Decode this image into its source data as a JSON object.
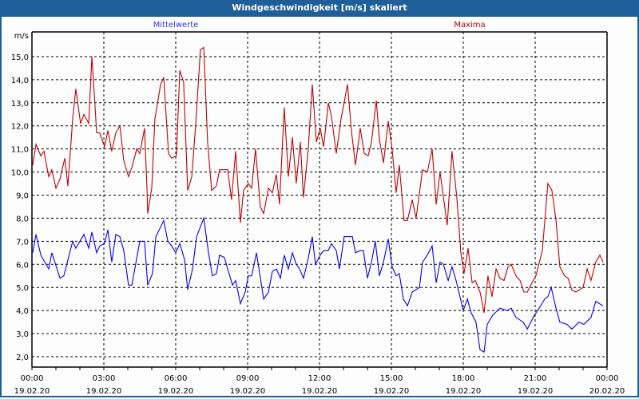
{
  "window": {
    "title": "Windgeschwindigkeit [m/s] skaliert"
  },
  "chart_data": {
    "type": "line",
    "title": "Windgeschwindigkeit [m/s] skaliert",
    "ylabel": "m/s",
    "xlabel": "",
    "ylim": [
      1.55,
      16.07
    ],
    "xlim_hours": [
      0,
      24
    ],
    "grid": true,
    "legend_placement": "top",
    "y_ticks": [
      "2,0",
      "3,0",
      "4,0",
      "5,0",
      "6,0",
      "7,0",
      "8,0",
      "9,0",
      "10,0",
      "11,0",
      "12,0",
      "13,0",
      "14,0",
      "15,0"
    ],
    "x_ticks": [
      {
        "time": "00:00",
        "date": "19.02.20"
      },
      {
        "time": "03:00",
        "date": "19.02.20"
      },
      {
        "time": "06:00",
        "date": "19.02.20"
      },
      {
        "time": "09:00",
        "date": "19.02.20"
      },
      {
        "time": "12:00",
        "date": "19.02.20"
      },
      {
        "time": "15:00",
        "date": "19.02.20"
      },
      {
        "time": "18:00",
        "date": "19.02.20"
      },
      {
        "time": "21:00",
        "date": "19.02.20"
      },
      {
        "time": "00:00",
        "date": "20.02.20"
      }
    ],
    "series": [
      {
        "name": "Mittelwerte",
        "color": "#0000ff",
        "points": [
          [
            0.03,
            6.5
          ],
          [
            0.17,
            7.3
          ],
          [
            0.37,
            6.4
          ],
          [
            0.7,
            5.8
          ],
          [
            0.83,
            6.5
          ],
          [
            1.17,
            5.4
          ],
          [
            1.33,
            5.5
          ],
          [
            1.7,
            7.0
          ],
          [
            1.83,
            6.7
          ],
          [
            2.17,
            7.3
          ],
          [
            2.37,
            6.7
          ],
          [
            2.5,
            7.4
          ],
          [
            2.7,
            6.5
          ],
          [
            2.83,
            6.8
          ],
          [
            3.03,
            6.9
          ],
          [
            3.17,
            7.5
          ],
          [
            3.33,
            6.1
          ],
          [
            3.5,
            7.3
          ],
          [
            3.67,
            7.2
          ],
          [
            3.83,
            6.6
          ],
          [
            4.03,
            5.1
          ],
          [
            4.17,
            5.1
          ],
          [
            4.5,
            7.0
          ],
          [
            4.7,
            7.0
          ],
          [
            4.83,
            5.1
          ],
          [
            5.03,
            5.6
          ],
          [
            5.17,
            7.2
          ],
          [
            5.5,
            7.9
          ],
          [
            5.67,
            7.0
          ],
          [
            5.83,
            6.8
          ],
          [
            6.0,
            6.5
          ],
          [
            6.17,
            6.9
          ],
          [
            6.37,
            6.2
          ],
          [
            6.5,
            4.9
          ],
          [
            6.7,
            5.8
          ],
          [
            6.87,
            7.2
          ],
          [
            7.17,
            8.0
          ],
          [
            7.37,
            6.5
          ],
          [
            7.53,
            5.5
          ],
          [
            7.7,
            5.6
          ],
          [
            7.83,
            6.4
          ],
          [
            8.03,
            6.3
          ],
          [
            8.17,
            5.8
          ],
          [
            8.37,
            5.1
          ],
          [
            8.5,
            5.3
          ],
          [
            8.7,
            4.3
          ],
          [
            8.9,
            4.8
          ],
          [
            9.03,
            5.5
          ],
          [
            9.17,
            5.5
          ],
          [
            9.37,
            6.5
          ],
          [
            9.67,
            4.5
          ],
          [
            9.87,
            4.8
          ],
          [
            10.03,
            5.7
          ],
          [
            10.2,
            5.8
          ],
          [
            10.37,
            5.4
          ],
          [
            10.53,
            6.4
          ],
          [
            10.7,
            5.8
          ],
          [
            10.87,
            6.5
          ],
          [
            11.03,
            6.0
          ],
          [
            11.17,
            5.8
          ],
          [
            11.33,
            5.4
          ],
          [
            11.5,
            6.1
          ],
          [
            11.7,
            7.2
          ],
          [
            11.83,
            6.0
          ],
          [
            12.03,
            6.4
          ],
          [
            12.17,
            6.6
          ],
          [
            12.37,
            6.6
          ],
          [
            12.5,
            6.9
          ],
          [
            12.7,
            6.6
          ],
          [
            12.83,
            5.8
          ],
          [
            13.03,
            7.2
          ],
          [
            13.17,
            7.2
          ],
          [
            13.37,
            7.2
          ],
          [
            13.5,
            6.5
          ],
          [
            13.7,
            6.6
          ],
          [
            13.83,
            6.6
          ],
          [
            14.0,
            5.4
          ],
          [
            14.17,
            6.1
          ],
          [
            14.33,
            7.0
          ],
          [
            14.5,
            5.5
          ],
          [
            14.67,
            6.1
          ],
          [
            14.87,
            7.1
          ],
          [
            15.03,
            5.9
          ],
          [
            15.2,
            5.5
          ],
          [
            15.33,
            5.6
          ],
          [
            15.5,
            4.5
          ],
          [
            15.67,
            4.2
          ],
          [
            15.87,
            4.8
          ],
          [
            16.17,
            5.0
          ],
          [
            16.3,
            6.1
          ],
          [
            16.5,
            6.4
          ],
          [
            16.7,
            6.8
          ],
          [
            16.87,
            5.2
          ],
          [
            17.03,
            6.1
          ],
          [
            17.17,
            6.0
          ],
          [
            17.37,
            5.3
          ],
          [
            17.53,
            5.9
          ],
          [
            17.7,
            5.3
          ],
          [
            18.0,
            4.0
          ],
          [
            18.17,
            4.5
          ],
          [
            18.33,
            3.9
          ],
          [
            18.53,
            3.5
          ],
          [
            18.7,
            2.3
          ],
          [
            18.87,
            2.2
          ],
          [
            19.0,
            3.4
          ],
          [
            19.23,
            3.8
          ],
          [
            19.53,
            4.1
          ],
          [
            19.83,
            4.0
          ],
          [
            20.0,
            4.1
          ],
          [
            20.2,
            3.7
          ],
          [
            20.5,
            3.5
          ],
          [
            20.67,
            3.2
          ],
          [
            20.97,
            3.8
          ],
          [
            21.17,
            4.1
          ],
          [
            21.4,
            4.5
          ],
          [
            21.53,
            4.6
          ],
          [
            21.67,
            5.0
          ],
          [
            21.87,
            4.1
          ],
          [
            22.03,
            3.5
          ],
          [
            22.33,
            3.4
          ],
          [
            22.53,
            3.2
          ],
          [
            22.83,
            3.5
          ],
          [
            23.03,
            3.4
          ],
          [
            23.33,
            3.7
          ],
          [
            23.53,
            4.4
          ],
          [
            23.83,
            4.2
          ]
        ]
      },
      {
        "name": "Maxima",
        "color": "#c00000",
        "points": [
          [
            0.03,
            10.3
          ],
          [
            0.17,
            11.2
          ],
          [
            0.37,
            10.7
          ],
          [
            0.5,
            10.9
          ],
          [
            0.7,
            9.8
          ],
          [
            0.83,
            10.1
          ],
          [
            1.0,
            9.3
          ],
          [
            1.17,
            9.7
          ],
          [
            1.37,
            10.6
          ],
          [
            1.5,
            9.4
          ],
          [
            1.7,
            12.3
          ],
          [
            1.83,
            13.6
          ],
          [
            2.03,
            12.1
          ],
          [
            2.17,
            12.5
          ],
          [
            2.37,
            12.1
          ],
          [
            2.5,
            15.0
          ],
          [
            2.6,
            13.4
          ],
          [
            2.7,
            11.7
          ],
          [
            2.83,
            11.7
          ],
          [
            3.03,
            11.1
          ],
          [
            3.17,
            11.8
          ],
          [
            3.33,
            10.9
          ],
          [
            3.5,
            11.7
          ],
          [
            3.67,
            12.0
          ],
          [
            3.83,
            10.5
          ],
          [
            4.03,
            9.8
          ],
          [
            4.17,
            10.2
          ],
          [
            4.37,
            11.0
          ],
          [
            4.5,
            10.8
          ],
          [
            4.7,
            11.9
          ],
          [
            4.8,
            9.3
          ],
          [
            4.83,
            8.2
          ],
          [
            5.0,
            9.3
          ],
          [
            5.13,
            12.3
          ],
          [
            5.37,
            13.8
          ],
          [
            5.5,
            14.1
          ],
          [
            5.7,
            10.8
          ],
          [
            5.83,
            10.6
          ],
          [
            6.03,
            10.7
          ],
          [
            6.17,
            14.4
          ],
          [
            6.33,
            13.9
          ],
          [
            6.5,
            9.2
          ],
          [
            6.67,
            9.8
          ],
          [
            6.83,
            12.0
          ],
          [
            7.03,
            15.3
          ],
          [
            7.17,
            15.4
          ],
          [
            7.33,
            11.3
          ],
          [
            7.5,
            9.2
          ],
          [
            7.7,
            9.4
          ],
          [
            7.83,
            10.1
          ],
          [
            8.17,
            10.1
          ],
          [
            8.33,
            8.8
          ],
          [
            8.5,
            10.9
          ],
          [
            8.7,
            7.8
          ],
          [
            8.83,
            9.2
          ],
          [
            9.03,
            9.5
          ],
          [
            9.17,
            9.3
          ],
          [
            9.33,
            11.0
          ],
          [
            9.53,
            8.5
          ],
          [
            9.67,
            8.2
          ],
          [
            9.87,
            9.3
          ],
          [
            10.03,
            9.1
          ],
          [
            10.2,
            9.9
          ],
          [
            10.33,
            8.6
          ],
          [
            10.53,
            12.8
          ],
          [
            10.7,
            9.8
          ],
          [
            10.87,
            11.5
          ],
          [
            11.03,
            9.5
          ],
          [
            11.2,
            11.3
          ],
          [
            11.33,
            8.9
          ],
          [
            11.53,
            11.0
          ],
          [
            11.7,
            13.8
          ],
          [
            11.87,
            11.3
          ],
          [
            12.03,
            11.9
          ],
          [
            12.17,
            11.1
          ],
          [
            12.37,
            13.0
          ],
          [
            12.5,
            12.4
          ],
          [
            12.7,
            10.8
          ],
          [
            12.9,
            12.3
          ],
          [
            13.17,
            13.8
          ],
          [
            13.33,
            11.8
          ],
          [
            13.5,
            10.3
          ],
          [
            13.7,
            11.9
          ],
          [
            13.87,
            10.8
          ],
          [
            14.03,
            10.7
          ],
          [
            14.17,
            11.3
          ],
          [
            14.37,
            13.1
          ],
          [
            14.5,
            11.4
          ],
          [
            14.67,
            10.4
          ],
          [
            14.87,
            12.2
          ],
          [
            15.03,
            11.0
          ],
          [
            15.2,
            9.1
          ],
          [
            15.33,
            10.3
          ],
          [
            15.53,
            7.9
          ],
          [
            15.67,
            7.9
          ],
          [
            15.87,
            8.8
          ],
          [
            16.03,
            8.0
          ],
          [
            16.3,
            10.1
          ],
          [
            16.5,
            10.0
          ],
          [
            16.7,
            11.0
          ],
          [
            16.87,
            8.6
          ],
          [
            17.03,
            10.0
          ],
          [
            17.33,
            7.7
          ],
          [
            17.53,
            10.9
          ],
          [
            17.73,
            8.9
          ],
          [
            17.9,
            6.5
          ],
          [
            18.03,
            5.6
          ],
          [
            18.2,
            6.7
          ],
          [
            18.37,
            5.2
          ],
          [
            18.5,
            5.3
          ],
          [
            18.7,
            4.8
          ],
          [
            18.87,
            3.9
          ],
          [
            19.03,
            5.5
          ],
          [
            19.2,
            4.6
          ],
          [
            19.37,
            5.8
          ],
          [
            19.53,
            5.4
          ],
          [
            19.7,
            5.3
          ],
          [
            19.87,
            5.9
          ],
          [
            20.0,
            6.0
          ],
          [
            20.2,
            5.5
          ],
          [
            20.37,
            5.3
          ],
          [
            20.53,
            4.8
          ],
          [
            20.67,
            4.8
          ],
          [
            20.87,
            5.2
          ],
          [
            21.03,
            5.5
          ],
          [
            21.3,
            6.6
          ],
          [
            21.53,
            9.5
          ],
          [
            21.7,
            9.2
          ],
          [
            21.87,
            7.9
          ],
          [
            22.03,
            5.9
          ],
          [
            22.23,
            5.5
          ],
          [
            22.37,
            5.4
          ],
          [
            22.53,
            4.9
          ],
          [
            22.7,
            4.8
          ],
          [
            23.0,
            5.0
          ],
          [
            23.17,
            5.8
          ],
          [
            23.33,
            5.3
          ],
          [
            23.53,
            6.1
          ],
          [
            23.7,
            6.4
          ],
          [
            23.83,
            6.1
          ]
        ]
      }
    ]
  }
}
